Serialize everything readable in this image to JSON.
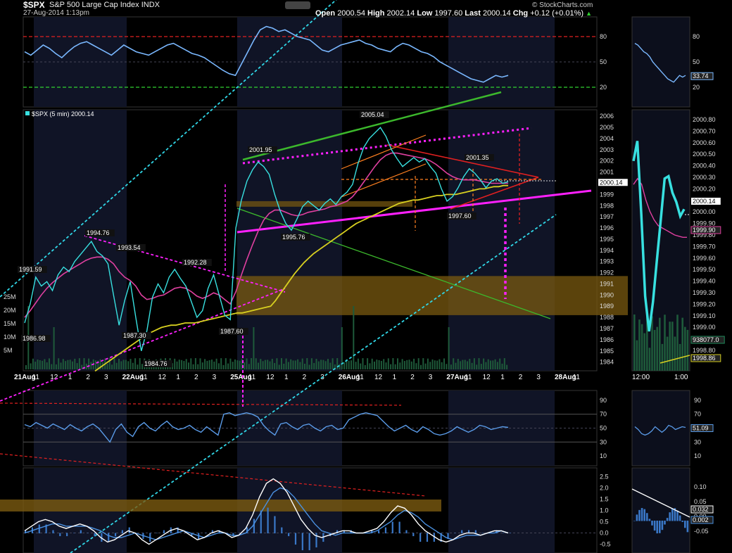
{
  "header": {
    "symbol": "$SPX",
    "name": "S&P 500 Large Cap Index",
    "exchange": "INDX",
    "timestamp": "27-Aug-2014 1:13pm",
    "open_label": "Open",
    "open": "2000.54",
    "high_label": "High",
    "high": "2002.14",
    "low_label": "Low",
    "low": "1997.60",
    "last_label": "Last",
    "last": "2000.14",
    "chg_label": "Chg",
    "chg": "+0.12 (+0.01%)",
    "brand": "© StockCharts.com"
  },
  "colors": {
    "price": "#38e0e0",
    "ma_fast": "#e040a0",
    "ma_slow": "#d8d020",
    "indicator": "#4a90e0",
    "trend_green": "#3cb82c",
    "trend_magenta": "#ff20ff",
    "trend_cyan": "#30d8e8",
    "trend_orange": "#ff8020",
    "trend_red": "#e02020",
    "band_fill": "#7a5a10"
  },
  "chart_data": [
    {
      "type": "line",
      "panel": "rsi-top",
      "y_ticks": [
        "80",
        "50",
        "20"
      ],
      "ylim": [
        0,
        100
      ],
      "hlines": [
        {
          "value": 80,
          "color": "#e02020"
        },
        {
          "value": 20,
          "color": "#30d030"
        }
      ],
      "current_value": "33.74",
      "values": [
        62,
        58,
        64,
        70,
        66,
        60,
        55,
        62,
        68,
        72,
        74,
        70,
        66,
        62,
        58,
        64,
        70,
        66,
        62,
        60,
        58,
        62,
        66,
        70,
        72,
        68,
        64,
        60,
        58,
        55,
        50,
        45,
        40,
        36,
        34,
        48,
        62,
        76,
        88,
        92,
        90,
        86,
        88,
        84,
        80,
        78,
        76,
        70,
        64,
        62,
        66,
        70,
        72,
        74,
        76,
        72,
        70,
        66,
        64,
        62,
        68,
        72,
        70,
        66,
        62,
        60,
        56,
        50,
        46,
        42,
        38,
        34,
        30,
        28,
        26,
        30,
        34,
        32,
        34
      ]
    },
    {
      "type": "line",
      "panel": "price",
      "legend": "$SPX (5 min) 2000.14",
      "ylim": [
        1983.6,
        2006.2
      ],
      "y_ticks": [
        "2006",
        "2005",
        "2004",
        "2003",
        "2002",
        "2001",
        "2000",
        "1999",
        "1998",
        "1997",
        "1996",
        "1995",
        "1994",
        "1993",
        "1992",
        "1991",
        "1990",
        "1989",
        "1988",
        "1987",
        "1986",
        "1985",
        "1984"
      ],
      "x_ticks": [
        "21Aug",
        "11",
        "12",
        "1",
        "2",
        "3",
        "22Aug",
        "11",
        "12",
        "1",
        "2",
        "3",
        "25Aug",
        "11",
        "12",
        "1",
        "2",
        "3",
        "26Aug",
        "11",
        "12",
        "1",
        "2",
        "3",
        "27Aug",
        "11",
        "12",
        "1",
        "2",
        "3",
        "28Aug",
        "11"
      ],
      "volume_ticks": [
        "25M",
        "20M",
        "15M",
        "10M",
        "5M"
      ],
      "annotations": [
        "1991.59",
        "1986.98",
        "1994.76",
        "1993.54",
        "1987.30",
        "1984.76",
        "1992.28",
        "1987.60",
        "2001.95",
        "1995.76",
        "2005.04",
        "2001.35",
        "1997.60"
      ],
      "current_value": "2000.14",
      "price": [
        1987.5,
        1989.2,
        1991.6,
        1990.8,
        1991.2,
        1990.4,
        1991.8,
        1992.5,
        1992.1,
        1993.0,
        1993.6,
        1994.2,
        1994.8,
        1993.9,
        1993.5,
        1992.8,
        1990.0,
        1987.3,
        1989.5,
        1991.2,
        1988.0,
        1985.0,
        1986.8,
        1989.8,
        1991.0,
        1990.2,
        1991.6,
        1992.3,
        1991.5,
        1990.8,
        1989.4,
        1988.0,
        1988.6,
        1990.6,
        1991.8,
        1990.0,
        1988.2,
        1987.8,
        1996.0,
        1998.5,
        2000.2,
        2001.2,
        2001.9,
        2001.5,
        2000.8,
        1999.0,
        1997.5,
        1996.4,
        1995.8,
        1996.8,
        1997.9,
        1998.4,
        1998.0,
        1997.6,
        1998.2,
        1998.6,
        1998.1,
        1998.8,
        1999.2,
        1999.9,
        2001.8,
        2003.2,
        2004.0,
        2004.5,
        2005.0,
        2004.2,
        2003.0,
        2002.2,
        2001.5,
        2001.9,
        2002.3,
        2001.9,
        2002.2,
        2001.5,
        2000.9,
        1999.5,
        1998.4,
        1998.8,
        1999.6,
        2000.6,
        2001.3,
        2000.9,
        2000.3,
        1999.6,
        2000.2,
        2000.4,
        2000.0,
        2000.14
      ],
      "ma_fast": [
        1988.0,
        1988.6,
        1989.3,
        1990.0,
        1990.6,
        1991.1,
        1991.5,
        1991.9,
        1992.2,
        1992.5,
        1992.8,
        1993.1,
        1993.3,
        1993.4,
        1993.4,
        1993.2,
        1992.8,
        1992.1,
        1991.6,
        1991.3,
        1990.8,
        1990.0,
        1989.6,
        1989.7,
        1989.9,
        1990.0,
        1990.3,
        1990.6,
        1990.7,
        1990.6,
        1990.3,
        1989.9,
        1989.7,
        1989.9,
        1990.2,
        1990.0,
        1989.6,
        1989.2,
        1990.3,
        1991.8,
        1993.2,
        1994.5,
        1995.7,
        1996.7,
        1997.3,
        1997.6,
        1997.6,
        1997.4,
        1997.2,
        1997.1,
        1997.2,
        1997.4,
        1997.5,
        1997.6,
        1997.7,
        1997.9,
        1998.0,
        1998.2,
        1998.4,
        1998.8,
        1999.4,
        2000.1,
        2000.8,
        2001.5,
        2002.1,
        2002.5,
        2002.7,
        2002.7,
        2002.6,
        2002.5,
        2002.4,
        2002.3,
        2002.2,
        2002.0,
        2001.7,
        2001.3,
        2000.9,
        2000.6,
        2000.4,
        2000.3,
        2000.3,
        2000.3,
        2000.2,
        2000.1,
        2000.0,
        2000.0,
        2000.0,
        2000.0
      ],
      "ma_slow": [
        1983.2,
        1983.5,
        1983.8,
        1984.1,
        1984.4,
        1984.7,
        1985.0,
        1985.3,
        1985.6,
        1985.9,
        1986.2,
        1986.5,
        1986.7,
        1986.9,
        1987.1,
        1987.2,
        1987.3,
        1987.3,
        1987.4,
        1987.5,
        1987.5,
        1987.5,
        1987.6,
        1987.7,
        1987.8,
        1987.9,
        1988.0,
        1988.1,
        1988.2,
        1988.3,
        1988.4,
        1988.4,
        1988.5,
        1988.6,
        1988.7,
        1988.8,
        1988.9,
        1989.0,
        1989.5,
        1990.1,
        1990.7,
        1991.3,
        1991.9,
        1992.4,
        1992.9,
        1993.3,
        1993.7,
        1994.0,
        1994.3,
        1994.6,
        1994.9,
        1995.2,
        1995.5,
        1995.8,
        1996.1,
        1996.4,
        1996.6,
        1996.8,
        1997.0,
        1997.2,
        1997.4,
        1997.6,
        1997.8,
        1998.0,
        1998.2,
        1998.3,
        1998.4,
        1998.5,
        1998.5,
        1998.6,
        1998.7,
        1998.8,
        1998.9,
        1998.9,
        1999.0,
        1999.0,
        1999.0,
        1999.1,
        1999.2,
        1999.3,
        1999.4,
        1999.5,
        1999.5,
        1999.6,
        1999.7,
        1999.7,
        1999.8,
        1999.8
      ]
    },
    {
      "type": "line",
      "panel": "rsi-mid",
      "ylim": [
        0,
        100
      ],
      "y_ticks": [
        "90",
        "70",
        "50",
        "30",
        "10"
      ],
      "current_value": "51.09",
      "values": [
        55,
        52,
        58,
        54,
        50,
        56,
        52,
        48,
        55,
        50,
        46,
        52,
        56,
        50,
        40,
        30,
        48,
        56,
        44,
        38,
        52,
        58,
        50,
        46,
        54,
        60,
        52,
        48,
        50,
        54,
        48,
        44,
        52,
        46,
        40,
        70,
        72,
        68,
        70,
        72,
        70,
        66,
        54,
        46,
        40,
        56,
        58,
        52,
        48,
        54,
        56,
        50,
        46,
        52,
        54,
        48,
        50,
        62,
        66,
        70,
        72,
        70,
        68,
        60,
        52,
        46,
        50,
        54,
        48,
        44,
        52,
        48,
        42,
        40,
        42,
        46,
        52,
        48,
        44,
        48,
        54,
        52,
        48,
        50,
        52,
        51
      ]
    },
    {
      "type": "line",
      "panel": "macd",
      "ylim": [
        -0.7,
        2.7
      ],
      "y_ticks": [
        "2.5",
        "2.0",
        "1.5",
        "1.0",
        "0.5",
        "0.0",
        "-0.5"
      ],
      "right_ticks": [
        "0.10",
        "0.05",
        "0.00",
        "-0.05"
      ],
      "current_values": [
        "0.032",
        "0.002"
      ],
      "macd": [
        0.1,
        0.3,
        0.5,
        0.6,
        0.5,
        0.3,
        0.2,
        0.3,
        0.4,
        0.3,
        0.1,
        -0.2,
        -0.4,
        -0.3,
        -0.1,
        0.1,
        0.0,
        -0.3,
        -0.5,
        -0.3,
        -0.1,
        0.1,
        0.2,
        0.1,
        -0.1,
        -0.3,
        -0.2,
        0.0,
        0.1,
        0.0,
        -0.2,
        -0.1,
        0.2,
        0.8,
        1.6,
        2.2,
        2.4,
        2.2,
        1.8,
        1.2,
        0.6,
        0.2,
        -0.1,
        -0.2,
        -0.1,
        0.0,
        0.1,
        0.1,
        0.0,
        0.0,
        0.1,
        0.2,
        0.5,
        0.9,
        1.2,
        1.1,
        0.8,
        0.4,
        0.1,
        -0.1,
        -0.3,
        -0.4,
        -0.3,
        -0.1,
        0.0,
        0.0,
        -0.1,
        0.0,
        0.1,
        0.1,
        0.0
      ],
      "signal": [
        0.0,
        0.1,
        0.2,
        0.3,
        0.4,
        0.4,
        0.3,
        0.3,
        0.3,
        0.3,
        0.2,
        0.1,
        -0.1,
        -0.2,
        -0.2,
        -0.1,
        0.0,
        -0.1,
        -0.2,
        -0.3,
        -0.2,
        -0.1,
        0.0,
        0.1,
        0.0,
        -0.1,
        -0.2,
        -0.1,
        0.0,
        0.0,
        -0.1,
        -0.1,
        0.0,
        0.3,
        0.8,
        1.3,
        1.8,
        2.0,
        1.9,
        1.6,
        1.2,
        0.8,
        0.4,
        0.1,
        0.0,
        -0.1,
        0.0,
        0.0,
        0.0,
        0.0,
        0.0,
        0.1,
        0.3,
        0.5,
        0.8,
        1.0,
        0.9,
        0.7,
        0.4,
        0.2,
        0.0,
        -0.2,
        -0.3,
        -0.2,
        -0.1,
        -0.1,
        -0.1,
        0.0,
        0.0,
        0.1,
        0.0
      ]
    },
    {
      "type": "line",
      "panel": "intraday-price",
      "ylim": [
        1998.8,
        2000.95
      ],
      "y_ticks": [
        "2000.80",
        "2000.70",
        "2000.60",
        "2000.50",
        "2000.40",
        "2000.30",
        "2000.20",
        "2000.10",
        "2000.00",
        "1999.90",
        "1999.80",
        "1999.70",
        "1999.60",
        "1999.50",
        "1999.40",
        "1999.30",
        "1999.20",
        "1999.10",
        "1999.00",
        "1998.90",
        "1998.80"
      ],
      "x_ticks": [
        "12:00",
        "1:00"
      ],
      "labels": [
        "2000.14",
        "1999.90",
        "938077.0",
        "1998.86"
      ],
      "price": [
        2000.55,
        2000.72,
        2000.1,
        1999.4,
        1999.1,
        1999.35,
        1999.7,
        2000.05,
        2000.4,
        2000.42,
        2000.28,
        2000.2,
        2000.08,
        2000.14
      ],
      "ma_fast": [
        2000.35,
        2000.4,
        2000.35,
        2000.22,
        2000.12,
        2000.05,
        2000.0,
        1999.98,
        1999.96,
        1999.94,
        1999.92,
        1999.91,
        1999.9,
        1999.9
      ]
    }
  ]
}
